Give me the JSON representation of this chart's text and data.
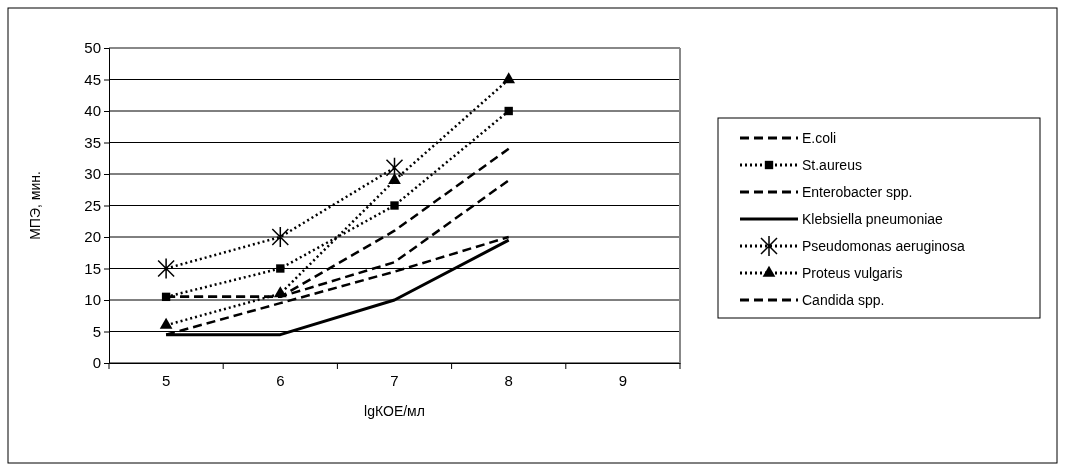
{
  "chart_data": {
    "type": "line",
    "xlabel": "lgКОЕ/мл",
    "ylabel": "МПЭ, мин.",
    "categories": [
      "5",
      "6",
      "7",
      "8",
      "9"
    ],
    "series": [
      {
        "name": "E.coli",
        "color": "#000000",
        "line_style": "dashed",
        "marker": "none",
        "values": [
          10.5,
          10.5,
          16,
          29,
          null
        ]
      },
      {
        "name": "St.aureus",
        "color": "#000000",
        "line_style": "dotted",
        "marker": "square",
        "values": [
          10.5,
          15,
          25,
          40,
          null
        ]
      },
      {
        "name": "Enterobacter spp.",
        "color": "#000000",
        "line_style": "dashed",
        "marker": "none",
        "values": [
          10.5,
          10.5,
          21,
          34,
          null
        ]
      },
      {
        "name": "Klebsiella pneumoniae",
        "color": "#000000",
        "line_style": "solid",
        "marker": "none",
        "values": [
          4.5,
          4.5,
          10,
          19.5,
          null
        ]
      },
      {
        "name": "Pseudomonas aeruginosa",
        "color": "#000000",
        "line_style": "dotted",
        "marker": "cross",
        "values": [
          15,
          20,
          31,
          null,
          null
        ]
      },
      {
        "name": "Proteus vulgaris",
        "color": "#000000",
        "line_style": "dotted",
        "marker": "triangle",
        "values": [
          6,
          11,
          29,
          45,
          null
        ]
      },
      {
        "name": "Candida spp.",
        "color": "#000000",
        "line_style": "dashed",
        "marker": "none",
        "values": [
          4.5,
          9.5,
          14.5,
          20,
          null
        ]
      }
    ],
    "ylim": [
      0,
      50
    ],
    "yticks": [
      0,
      5,
      10,
      15,
      20,
      25,
      30,
      35,
      40,
      45,
      50
    ],
    "grid": "y",
    "legend": "right"
  }
}
